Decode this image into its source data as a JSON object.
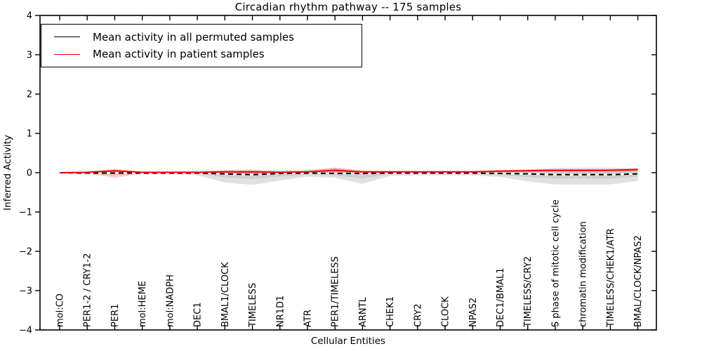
{
  "title": "Circadian rhythm pathway -- 175 samples",
  "legend": {
    "items": [
      {
        "label": "Mean activity in all permuted samples",
        "color": "#000000"
      },
      {
        "label": "Mean activity in patient samples",
        "color": "#ff0000"
      }
    ]
  },
  "chart_data": {
    "type": "line",
    "title": "Circadian rhythm pathway -- 175 samples",
    "xlabel": "Cellular Entities",
    "ylabel": "Inferred Activity",
    "ylim": [
      -4,
      4
    ],
    "yticks": [
      4,
      3,
      2,
      1,
      0,
      -1,
      -2,
      -3,
      -4
    ],
    "yticklabels": [
      "4",
      "3",
      "2",
      "1",
      "0",
      "−1",
      "−2",
      "−3",
      "−4"
    ],
    "grid": false,
    "legend_position": "upper left",
    "categories": [
      "mol:CO",
      "PER1-2 / CRY1-2",
      "PER1",
      "mol:HEME",
      "mol:NADPH",
      "DEC1",
      "BMAL1/CLOCK",
      "TIMELESS",
      "NR1D1",
      "ATR",
      "PER1/TIMELESS",
      "ARNTL",
      "CHEK1",
      "CRY2",
      "CLOCK",
      "NPAS2",
      "DEC1/BMAL1",
      "TIMELESS/CRY2",
      "S phase of mitotic cell cycle",
      "chromatin modification",
      "TIMELESS/CHEK1/ATR",
      "BMAL/CLOCK/NPAS2"
    ],
    "series": [
      {
        "name": "Mean activity in all permuted samples",
        "color": "#000000",
        "dash": "7 5",
        "underlay_color": "#ffffff",
        "values": [
          0,
          -0.01,
          -0.01,
          -0.01,
          -0.01,
          -0.01,
          -0.03,
          -0.05,
          -0.02,
          -0.01,
          -0.02,
          -0.02,
          -0.01,
          -0.01,
          -0.01,
          -0.01,
          -0.02,
          -0.03,
          -0.05,
          -0.05,
          -0.05,
          -0.03
        ]
      },
      {
        "name": "Mean activity in patient samples",
        "color": "#ff0000",
        "dash": "",
        "underlay_color": "",
        "values": [
          0,
          0.01,
          0.05,
          0.01,
          0.01,
          0.01,
          0.02,
          0.02,
          0.01,
          0.02,
          0.06,
          0.02,
          0.02,
          0.02,
          0.02,
          0.02,
          0.04,
          0.05,
          0.06,
          0.06,
          0.06,
          0.08
        ]
      }
    ],
    "bands": [
      {
        "name": "permuted-spread-outer",
        "color": "#b0b0b0",
        "opacity": 0.38,
        "upper": [
          0.02,
          0.03,
          0.05,
          0.03,
          0.03,
          0.04,
          0.07,
          0.08,
          0.06,
          0.08,
          0.12,
          0.06,
          0.05,
          0.05,
          0.05,
          0.05,
          0.06,
          0.08,
          0.12,
          0.13,
          0.13,
          0.1
        ],
        "lower": [
          -0.02,
          -0.04,
          -0.06,
          -0.04,
          -0.04,
          -0.07,
          -0.25,
          -0.31,
          -0.2,
          -0.1,
          -0.13,
          -0.28,
          -0.08,
          -0.07,
          -0.07,
          -0.07,
          -0.11,
          -0.22,
          -0.3,
          -0.3,
          -0.3,
          -0.21
        ]
      },
      {
        "name": "permuted-spread-inner",
        "color": "#b0b0b0",
        "opacity": 0.38,
        "upper": [
          0.01,
          0.02,
          0.03,
          0.02,
          0.02,
          0.02,
          0.04,
          0.05,
          0.03,
          0.04,
          0.06,
          0.03,
          0.03,
          0.03,
          0.03,
          0.03,
          0.04,
          0.05,
          0.07,
          0.07,
          0.07,
          0.06
        ],
        "lower": [
          -0.01,
          -0.02,
          -0.03,
          -0.02,
          -0.02,
          -0.03,
          -0.12,
          -0.16,
          -0.1,
          -0.05,
          -0.07,
          -0.14,
          -0.04,
          -0.04,
          -0.04,
          -0.04,
          -0.06,
          -0.11,
          -0.15,
          -0.15,
          -0.15,
          -0.1
        ]
      },
      {
        "name": "patient-spread",
        "color": "#ff0000",
        "opacity": 0.2,
        "upper": [
          0.01,
          0.02,
          0.1,
          0.02,
          0.02,
          0.02,
          0.06,
          0.06,
          0.03,
          0.05,
          0.13,
          0.04,
          0.04,
          0.04,
          0.04,
          0.04,
          0.06,
          0.08,
          0.09,
          0.09,
          0.09,
          0.12
        ],
        "lower": [
          -0.01,
          -0.02,
          -0.13,
          -0.02,
          -0.02,
          -0.02,
          -0.04,
          -0.05,
          -0.02,
          -0.01,
          -0.04,
          -0.02,
          -0.01,
          -0.01,
          0,
          0,
          0.01,
          0.02,
          0.03,
          0.03,
          0.03,
          0.04
        ]
      }
    ]
  }
}
